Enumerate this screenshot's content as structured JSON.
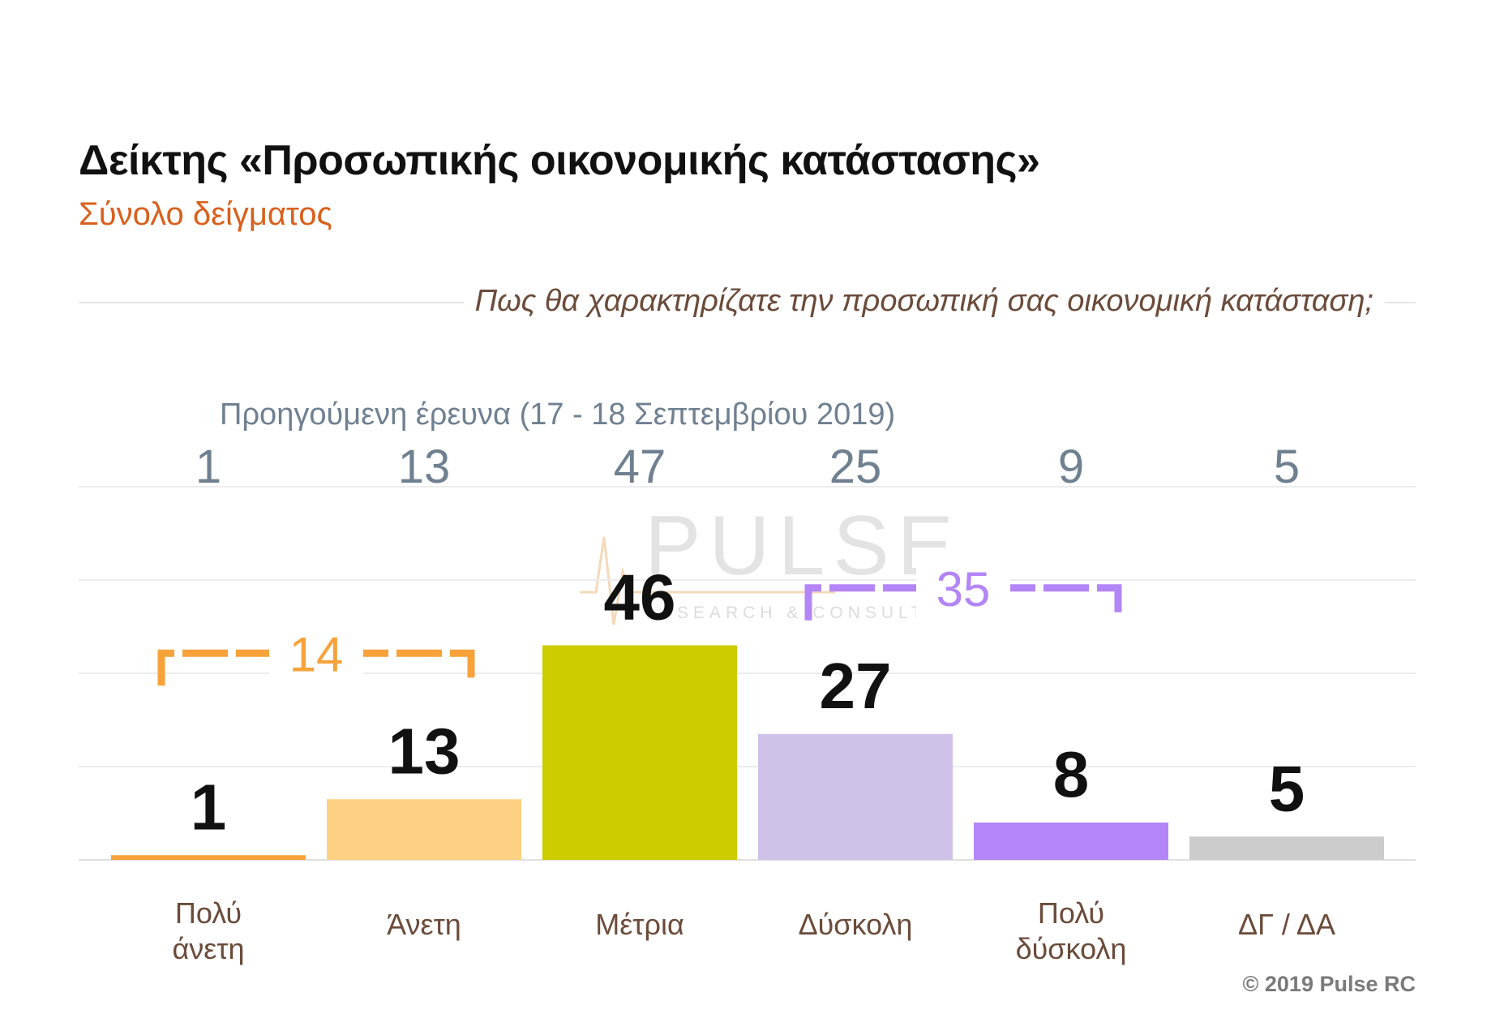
{
  "title": "Δείκτης «Προσωπικής οικονομικής κατάστασης»",
  "subtitle": "Σύνολο δείγματος",
  "question": "Πως θα χαρακτηρίζατε την προσωπική σας οικονομική κατάσταση;",
  "previous_survey_label": "Προηγούμενη έρευνα  (17 - 18  Σεπτεμβρίου  2019)",
  "copyright": "© 2019 Pulse RC",
  "watermark": {
    "main": "PULSE",
    "sub": "SEARCH & CONSULTING"
  },
  "colors": {
    "accent_orange": "#f7a23a",
    "accent_purple": "#b385f7",
    "subtitle": "#d9601c"
  },
  "chart_data": {
    "type": "bar",
    "categories": [
      [
        "Πολύ",
        "άνετη"
      ],
      [
        "Άνετη"
      ],
      [
        "Μέτρια"
      ],
      [
        "Δύσκολη"
      ],
      [
        "Πολύ",
        "δύσκολη"
      ],
      [
        "ΔΓ / ΔΑ"
      ]
    ],
    "values": [
      1,
      13,
      46,
      27,
      8,
      5
    ],
    "previous_values": [
      1,
      13,
      47,
      25,
      9,
      5
    ],
    "colors": [
      "#f7a23a",
      "#fed083",
      "#cccc00",
      "#cfc2e8",
      "#b385f7",
      "#cccccc"
    ],
    "ylim": [
      0,
      80
    ],
    "grid": true,
    "brackets": [
      {
        "from": 0,
        "to": 1,
        "value": "14",
        "color": "#f7a23a"
      },
      {
        "from": 3,
        "to": 4,
        "value": "35",
        "color": "#b385f7"
      }
    ]
  }
}
